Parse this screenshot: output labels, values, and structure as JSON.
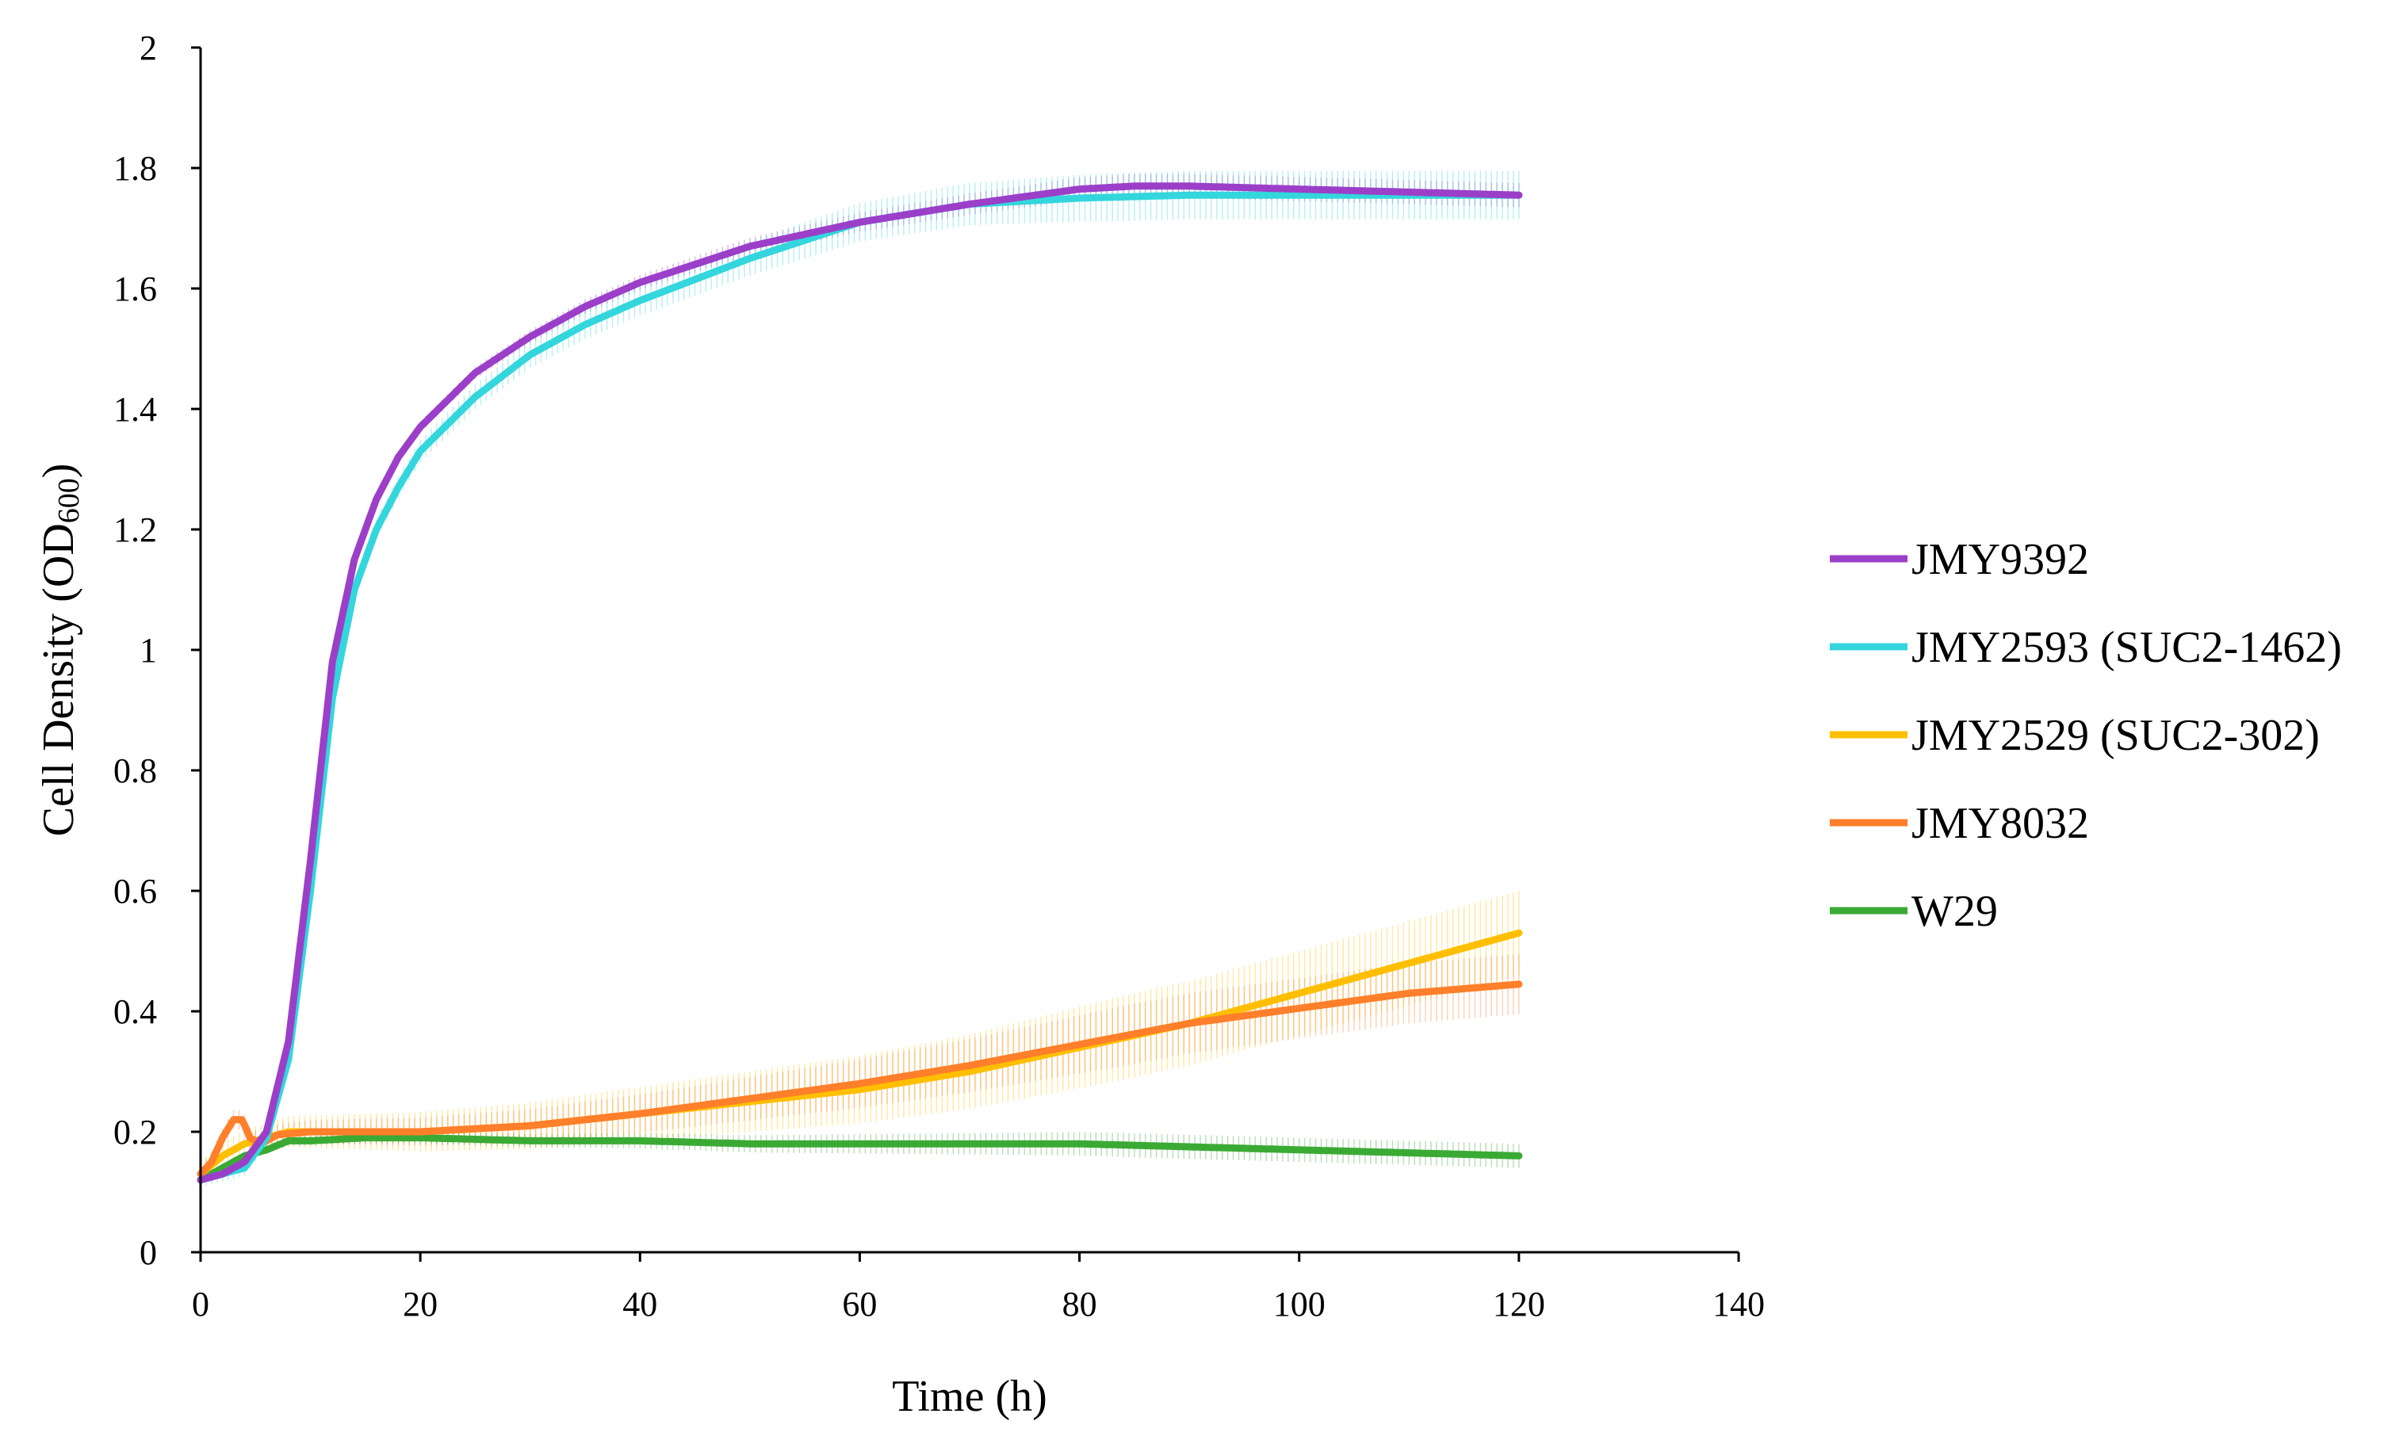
{
  "chart_data": {
    "type": "line",
    "title": "",
    "xlabel": "Time (h)",
    "ylabel_main": "Cell Density (OD",
    "ylabel_sub": "600",
    "ylabel_close": ")",
    "xlim": [
      0,
      140
    ],
    "ylim": [
      0,
      2
    ],
    "xticks": [
      0,
      20,
      40,
      60,
      80,
      100,
      120,
      140
    ],
    "yticks": [
      0,
      0.2,
      0.4,
      0.6,
      0.8,
      1,
      1.2,
      1.4,
      1.6,
      1.8,
      2
    ],
    "xtick_labels": [
      "0",
      "20",
      "40",
      "60",
      "80",
      "100",
      "120",
      "140"
    ],
    "ytick_labels": [
      "0",
      "0.2",
      "0.4",
      "0.6",
      "0.8",
      "1",
      "1.2",
      "1.4",
      "1.6",
      "1.8",
      "2"
    ],
    "grid": false,
    "legend_position": "right",
    "series": [
      {
        "name": "JMY9392",
        "color": "#9b3fc9",
        "x": [
          0,
          2,
          4,
          6,
          8,
          10,
          12,
          14,
          16,
          18,
          20,
          25,
          30,
          35,
          40,
          50,
          60,
          70,
          80,
          85,
          90,
          100,
          110,
          120
        ],
        "y": [
          0.12,
          0.13,
          0.15,
          0.2,
          0.35,
          0.65,
          0.98,
          1.15,
          1.25,
          1.32,
          1.37,
          1.46,
          1.52,
          1.57,
          1.61,
          1.67,
          1.71,
          1.74,
          1.765,
          1.77,
          1.77,
          1.765,
          1.76,
          1.755
        ],
        "error": 0.02
      },
      {
        "name": "JMY2593 (SUC2-1462)",
        "color": "#33d6dc",
        "x": [
          0,
          2,
          4,
          6,
          8,
          10,
          12,
          14,
          16,
          18,
          20,
          25,
          30,
          35,
          40,
          50,
          60,
          70,
          80,
          90,
          100,
          110,
          120
        ],
        "y": [
          0.12,
          0.13,
          0.14,
          0.19,
          0.32,
          0.6,
          0.92,
          1.1,
          1.2,
          1.27,
          1.33,
          1.42,
          1.49,
          1.54,
          1.58,
          1.65,
          1.71,
          1.74,
          1.75,
          1.755,
          1.755,
          1.755,
          1.755
        ],
        "error": 0.04
      },
      {
        "name": "JMY2529 (SUC2-302)",
        "color": "#ffbf00",
        "x": [
          0,
          2,
          4,
          6,
          8,
          10,
          15,
          20,
          30,
          40,
          50,
          60,
          70,
          80,
          90,
          100,
          110,
          120
        ],
        "y": [
          0.13,
          0.16,
          0.18,
          0.19,
          0.2,
          0.2,
          0.2,
          0.2,
          0.21,
          0.23,
          0.25,
          0.27,
          0.3,
          0.34,
          0.38,
          0.43,
          0.48,
          0.53
        ],
        "error": 0.07
      },
      {
        "name": "JMY8032",
        "color": "#ff7f2a",
        "x": [
          0,
          1,
          2,
          3,
          3.8,
          4.5,
          5.5,
          7,
          10,
          15,
          20,
          30,
          40,
          50,
          60,
          70,
          80,
          90,
          100,
          110,
          120
        ],
        "y": [
          0.13,
          0.15,
          0.19,
          0.22,
          0.22,
          0.19,
          0.18,
          0.195,
          0.2,
          0.2,
          0.2,
          0.21,
          0.23,
          0.255,
          0.28,
          0.31,
          0.345,
          0.38,
          0.405,
          0.43,
          0.445
        ],
        "error": 0.05
      },
      {
        "name": "W29",
        "color": "#3aaa35",
        "x": [
          0,
          2,
          4,
          6,
          8,
          10,
          15,
          20,
          30,
          40,
          50,
          60,
          70,
          80,
          90,
          100,
          110,
          120
        ],
        "y": [
          0.12,
          0.14,
          0.16,
          0.17,
          0.185,
          0.185,
          0.19,
          0.19,
          0.185,
          0.185,
          0.18,
          0.18,
          0.18,
          0.18,
          0.175,
          0.17,
          0.165,
          0.16
        ],
        "error": 0.02
      }
    ]
  }
}
